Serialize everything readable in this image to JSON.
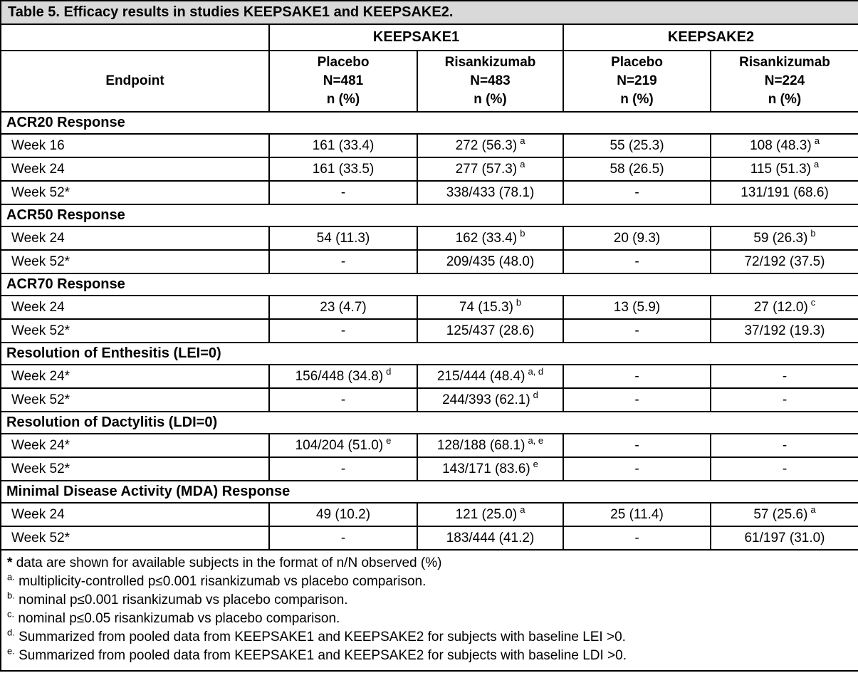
{
  "table": {
    "title": "Table 5. Efficacy results in studies KEEPSAKE1 and KEEPSAKE2.",
    "endpoint_header": "Endpoint",
    "col_groups": [
      "KEEPSAKE1",
      "KEEPSAKE2"
    ],
    "columns": [
      {
        "arm": "Placebo",
        "n": "N=481",
        "unit": "n (%)"
      },
      {
        "arm": "Risankizumab",
        "n": "N=483",
        "unit": "n (%)"
      },
      {
        "arm": "Placebo",
        "n": "N=219",
        "unit": "n (%)"
      },
      {
        "arm": "Risankizumab",
        "n": "N=224",
        "unit": "n (%)"
      }
    ],
    "sections": [
      {
        "header": "ACR20 Response",
        "rows": [
          {
            "label": "Week 16",
            "cells": [
              {
                "v": "161 (33.4)"
              },
              {
                "v": "272 (56.3)",
                "sup": "a"
              },
              {
                "v": "55 (25.3)"
              },
              {
                "v": "108 (48.3)",
                "sup": "a"
              }
            ]
          },
          {
            "label": "Week 24",
            "cells": [
              {
                "v": "161 (33.5)"
              },
              {
                "v": "277 (57.3)",
                "sup": "a"
              },
              {
                "v": "58 (26.5)"
              },
              {
                "v": "115 (51.3)",
                "sup": "a"
              }
            ]
          },
          {
            "label": "Week 52*",
            "cells": [
              {
                "v": "-"
              },
              {
                "v": "338/433 (78.1)"
              },
              {
                "v": "-"
              },
              {
                "v": "131/191 (68.6)"
              }
            ]
          }
        ]
      },
      {
        "header": "ACR50 Response",
        "rows": [
          {
            "label": "Week 24",
            "cells": [
              {
                "v": "54 (11.3)"
              },
              {
                "v": "162 (33.4)",
                "sup": "b"
              },
              {
                "v": "20 (9.3)"
              },
              {
                "v": "59 (26.3)",
                "sup": "b"
              }
            ]
          },
          {
            "label": "Week 52*",
            "cells": [
              {
                "v": "-"
              },
              {
                "v": "209/435 (48.0)"
              },
              {
                "v": "-"
              },
              {
                "v": "72/192 (37.5)"
              }
            ]
          }
        ]
      },
      {
        "header": "ACR70 Response",
        "rows": [
          {
            "label": "Week 24",
            "cells": [
              {
                "v": "23 (4.7)"
              },
              {
                "v": "74 (15.3)",
                "sup": "b"
              },
              {
                "v": "13 (5.9)"
              },
              {
                "v": "27 (12.0)",
                "sup": "c"
              }
            ]
          },
          {
            "label": "Week 52*",
            "cells": [
              {
                "v": "-"
              },
              {
                "v": "125/437 (28.6)"
              },
              {
                "v": "-"
              },
              {
                "v": "37/192 (19.3)"
              }
            ]
          }
        ]
      },
      {
        "header": "Resolution of Enthesitis (LEI=0)",
        "rows": [
          {
            "label": "Week 24*",
            "cells": [
              {
                "v": "156/448 (34.8)",
                "sup": "d"
              },
              {
                "v": "215/444 (48.4)",
                "sup": "a, d"
              },
              {
                "v": "-"
              },
              {
                "v": "-"
              }
            ]
          },
          {
            "label": "Week 52*",
            "cells": [
              {
                "v": "-"
              },
              {
                "v": "244/393 (62.1)",
                "sup": "d"
              },
              {
                "v": "-"
              },
              {
                "v": "-"
              }
            ]
          }
        ]
      },
      {
        "header": "Resolution of Dactylitis (LDI=0)",
        "rows": [
          {
            "label": "Week 24*",
            "cells": [
              {
                "v": "104/204 (51.0)",
                "sup": "e"
              },
              {
                "v": "128/188 (68.1)",
                "sup": "a, e"
              },
              {
                "v": "-"
              },
              {
                "v": "-"
              }
            ]
          },
          {
            "label": "Week 52*",
            "cells": [
              {
                "v": "-"
              },
              {
                "v": "143/171 (83.6)",
                "sup": "e"
              },
              {
                "v": "-"
              },
              {
                "v": "-"
              }
            ]
          }
        ]
      },
      {
        "header": "Minimal Disease Activity (MDA) Response",
        "rows": [
          {
            "label": "Week 24",
            "cells": [
              {
                "v": "49 (10.2)"
              },
              {
                "v": "121 (25.0)",
                "sup": "a"
              },
              {
                "v": "25 (11.4)"
              },
              {
                "v": "57 (25.6)",
                "sup": "a"
              }
            ]
          },
          {
            "label": "Week 52*",
            "cells": [
              {
                "v": "-"
              },
              {
                "v": "183/444 (41.2)"
              },
              {
                "v": "-"
              },
              {
                "v": "61/197 (31.0)"
              }
            ]
          }
        ]
      }
    ],
    "footnotes": [
      {
        "marker": "*",
        "sup": false,
        "text": "data are shown for available subjects in the format of n/N observed (%)"
      },
      {
        "marker": "a.",
        "sup": true,
        "text": "multiplicity-controlled p≤0.001 risankizumab vs placebo comparison."
      },
      {
        "marker": "b.",
        "sup": true,
        "text": "nominal p≤0.001 risankizumab vs placebo comparison."
      },
      {
        "marker": "c.",
        "sup": true,
        "text": "nominal p≤0.05 risankizumab vs placebo comparison."
      },
      {
        "marker": "d.",
        "sup": true,
        "text": "Summarized from pooled data from KEEPSAKE1 and KEEPSAKE2 for subjects with baseline LEI >0."
      },
      {
        "marker": "e.",
        "sup": true,
        "text": "Summarized from pooled data from KEEPSAKE1 and KEEPSAKE2 for subjects with baseline LDI >0."
      }
    ],
    "colors": {
      "title_background": "#d9d9d9",
      "border": "#000000",
      "text": "#000000"
    }
  }
}
